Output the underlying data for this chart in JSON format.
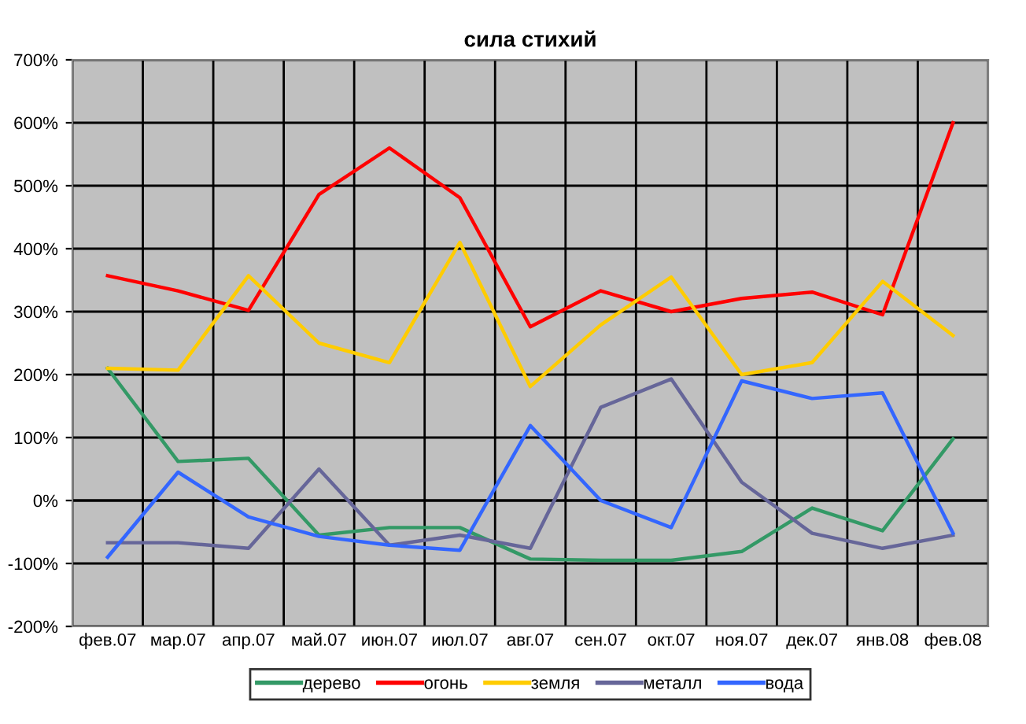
{
  "chart_data": {
    "type": "line",
    "title": "сила стихий",
    "categories": [
      "фев.07",
      "мар.07",
      "апр.07",
      "май.07",
      "июн.07",
      "июл.07",
      "авг.07",
      "сен.07",
      "окт.07",
      "ноя.07",
      "дек.07",
      "янв.08",
      "фев.08"
    ],
    "series": [
      {
        "name": "дерево",
        "color": "#339966",
        "values": [
          210,
          62,
          67,
          -55,
          -43,
          -43,
          -93,
          -95,
          -95,
          -81,
          -12,
          -48,
          98
        ]
      },
      {
        "name": "огонь",
        "color": "#ff0000",
        "values": [
          357,
          333,
          302,
          486,
          560,
          481,
          276,
          333,
          300,
          321,
          331,
          295,
          600
        ]
      },
      {
        "name": "земля",
        "color": "#ffcc00",
        "values": [
          210,
          207,
          357,
          250,
          219,
          410,
          181,
          279,
          355,
          200,
          219,
          348,
          262
        ]
      },
      {
        "name": "металл",
        "color": "#666699",
        "values": [
          -67,
          -67,
          -76,
          50,
          -71,
          -55,
          -76,
          148,
          193,
          29,
          -52,
          -76,
          -55
        ]
      },
      {
        "name": "вода",
        "color": "#3366ff",
        "values": [
          -90,
          45,
          -26,
          -57,
          -71,
          -79,
          119,
          0,
          -43,
          190,
          162,
          171,
          -52
        ]
      }
    ],
    "ylim": [
      -200,
      700
    ],
    "yticks": [
      {
        "value": -200,
        "label": "-200%"
      },
      {
        "value": -100,
        "label": "-100%"
      },
      {
        "value": 0,
        "label": "0%"
      },
      {
        "value": 100,
        "label": "100%"
      },
      {
        "value": 200,
        "label": "200%"
      },
      {
        "value": 300,
        "label": "300%"
      },
      {
        "value": 400,
        "label": "400%"
      },
      {
        "value": 500,
        "label": "500%"
      },
      {
        "value": 600,
        "label": "600%"
      },
      {
        "value": 700,
        "label": "700%"
      }
    ],
    "grid": true,
    "legend": "bottom",
    "marker": "none",
    "line_style": "solid"
  }
}
